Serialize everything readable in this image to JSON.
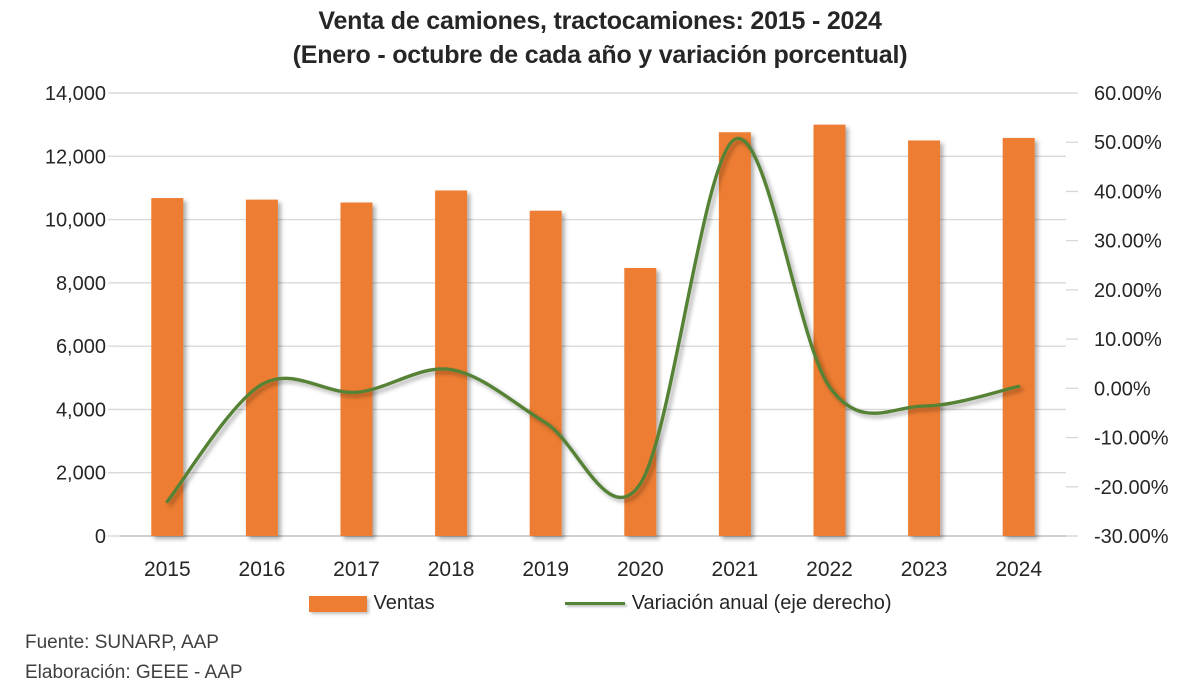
{
  "title": {
    "line1": "Venta de camiones, tractocamiones: 2015 - 2024",
    "line2": "(Enero - octubre de cada año y variación porcentual)"
  },
  "legend": {
    "ventas_label": "Ventas",
    "variacion_label": "Variación anual (eje derecho)"
  },
  "footer": {
    "line1": "Fuente: SUNARP, AAP",
    "line2": "Elaboración: GEEE - AAP"
  },
  "colors": {
    "bar": "#ED7D31",
    "line": "#548235",
    "grid": "#D9D9D9",
    "axis": "#BFBFBF",
    "text": "#262626",
    "footer_text": "#404040"
  },
  "chart_data": {
    "type": "bar",
    "subtype": "combo bar + smooth line, dual axis",
    "title": "Venta de camiones, tractocamiones: 2015 - 2024",
    "subtitle": "(Enero - octubre de cada año y variación porcentual)",
    "categories": [
      "2015",
      "2016",
      "2017",
      "2018",
      "2019",
      "2020",
      "2021",
      "2022",
      "2023",
      "2024"
    ],
    "series": [
      {
        "name": "Ventas",
        "type": "bar",
        "axis": "left",
        "color": "#ED7D31",
        "values": [
          10680,
          10630,
          10540,
          10920,
          10280,
          8470,
          12760,
          13000,
          12500,
          12580
        ]
      },
      {
        "name": "Variación anual (eje derecho)",
        "type": "line",
        "axis": "right",
        "color": "#548235",
        "values": [
          -23.0,
          0.8,
          -0.8,
          3.8,
          -7.0,
          -19.4,
          50.6,
          0.3,
          -3.6,
          0.4
        ],
        "unit": "%"
      }
    ],
    "left_axis": {
      "min": 0,
      "max": 14000,
      "tick_labels": [
        "14,000",
        "12,000",
        "10,000",
        "8,000",
        "6,000",
        "4,000",
        "2,000",
        "0"
      ]
    },
    "right_axis": {
      "min": -30,
      "max": 60,
      "tick_labels": [
        "60.00%",
        "50.00%",
        "40.00%",
        "30.00%",
        "20.00%",
        "10.00%",
        "0.00%",
        "-10.00%",
        "-20.00%",
        "-30.00%"
      ]
    },
    "grid": true,
    "legend_position": "bottom",
    "xlabel": "",
    "ylabel": ""
  }
}
